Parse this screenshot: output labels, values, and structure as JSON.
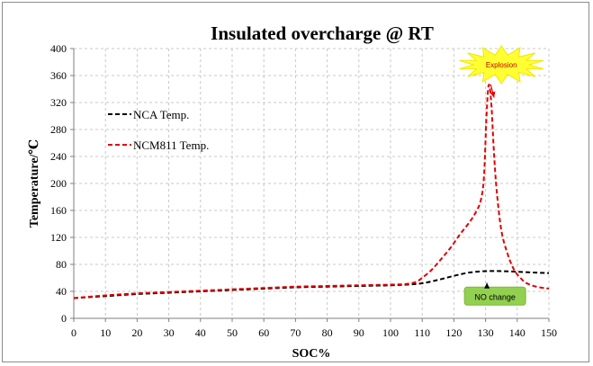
{
  "chart_data": {
    "type": "line",
    "title": "Insulated overcharge  @ RT",
    "xlabel": "SOC%",
    "ylabel": "Temperature/℃",
    "xlim": [
      0,
      150
    ],
    "ylim": [
      0,
      400
    ],
    "x_ticks": [
      0,
      10,
      20,
      30,
      40,
      50,
      60,
      70,
      80,
      90,
      100,
      110,
      120,
      130,
      140,
      150
    ],
    "y_ticks": [
      0,
      40,
      80,
      120,
      160,
      200,
      240,
      280,
      320,
      360,
      400
    ],
    "grid": true,
    "legend_position": "top-left",
    "series": [
      {
        "name": "NCA Temp.",
        "color": "#000000",
        "x": [
          0,
          10,
          20,
          30,
          40,
          50,
          60,
          70,
          80,
          90,
          100,
          105,
          110,
          115,
          120,
          125,
          130,
          135,
          140,
          145,
          150
        ],
        "y": [
          30,
          33,
          36,
          38,
          40,
          42,
          44,
          46,
          47,
          48,
          49,
          50,
          52,
          57,
          63,
          68,
          70,
          70,
          69,
          68,
          67
        ]
      },
      {
        "name": "NCM811 Temp.",
        "color": "#e00000",
        "x": [
          0,
          10,
          20,
          30,
          40,
          50,
          60,
          70,
          80,
          90,
          100,
          105,
          108,
          110,
          113,
          116,
          119,
          122,
          125,
          127,
          128.5,
          129.5,
          130.3,
          131,
          131.8,
          132.6,
          133.5,
          135,
          137,
          139,
          141,
          143,
          146,
          150
        ],
        "y": [
          30,
          34,
          37,
          39,
          41,
          43,
          45,
          47,
          48,
          49,
          50,
          51,
          54,
          60,
          72,
          88,
          105,
          125,
          143,
          158,
          175,
          210,
          300,
          346,
          320,
          250,
          190,
          130,
          95,
          72,
          60,
          52,
          47,
          44
        ]
      }
    ],
    "annotations": [
      {
        "text": "Explosion",
        "x": 135,
        "y": 376,
        "arrow_to": [
          131,
          346
        ],
        "fill": "#ffff33",
        "color": "#c00000"
      },
      {
        "text": "NO change",
        "x": 133,
        "y": 33,
        "arrow_to": [
          131,
          70
        ],
        "fill": "#92d050",
        "color": "#000000"
      }
    ]
  }
}
